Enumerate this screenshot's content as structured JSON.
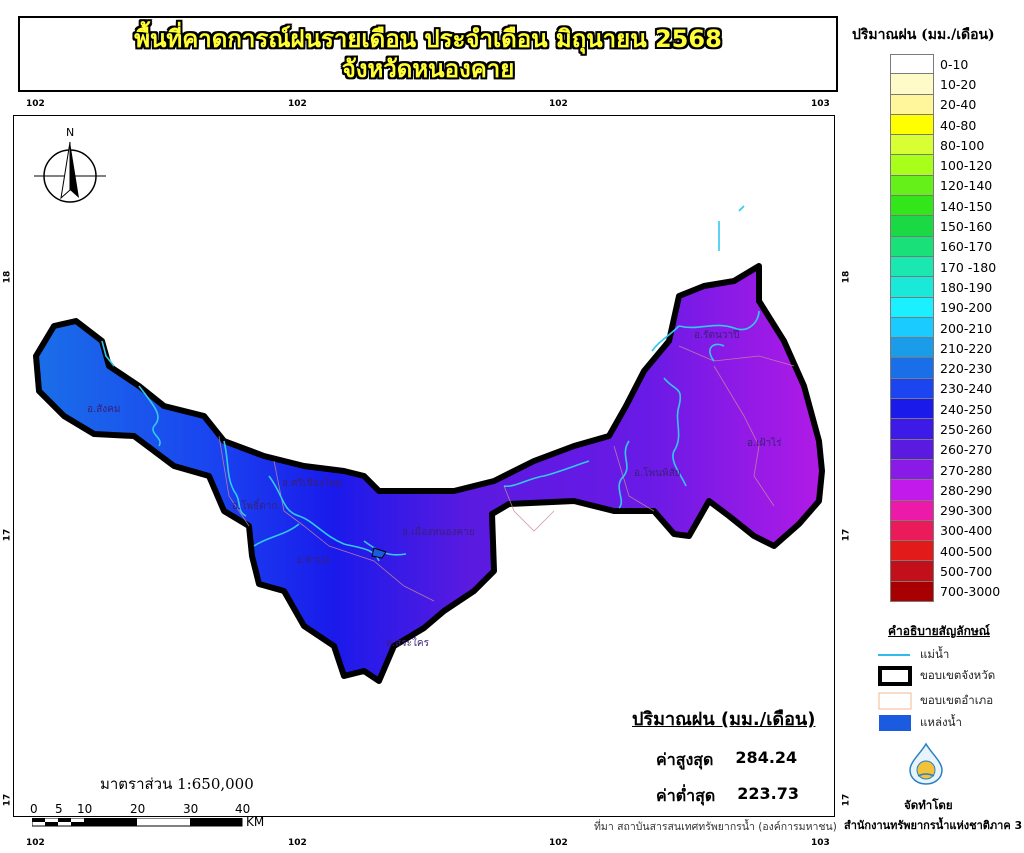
{
  "title": {
    "line1": "พื้นที่คาดการณ์ฝนรายเดือน ประจำเดือน มิถุนายน 2568",
    "line2": "จังหวัดหนองคาย"
  },
  "axis_ticks": {
    "top": [
      "102",
      "102",
      "102",
      "103"
    ],
    "bottom": [
      "102",
      "102",
      "102",
      "103"
    ],
    "left": [
      "18",
      "17",
      "17"
    ],
    "right": [
      "18",
      "17",
      "17"
    ]
  },
  "north_arrow": {
    "label": "N"
  },
  "districts": [
    "อ.สังคม",
    "อ.ศรีเชียงใหม่",
    "อ.โพธิ์ตาก",
    "อ.ท่าบ่อ",
    "อ.เมืองหนองคาย",
    "อ.สระใคร",
    "อ.โพนพิสัย",
    "อ.รัตนวาปี",
    "อ.เฝ้าไร่"
  ],
  "legend": {
    "title": "ปริมาณฝน (มม./เดือน)",
    "classes": [
      {
        "label": "0-10",
        "color": "#ffffff"
      },
      {
        "label": "10-20",
        "color": "#fffbc8"
      },
      {
        "label": "20-40",
        "color": "#fff59a"
      },
      {
        "label": "40-80",
        "color": "#ffff00"
      },
      {
        "label": "80-100",
        "color": "#d8ff33"
      },
      {
        "label": "100-120",
        "color": "#a8ff1a"
      },
      {
        "label": "120-140",
        "color": "#66f01a"
      },
      {
        "label": "140-150",
        "color": "#33e61a"
      },
      {
        "label": "150-160",
        "color": "#1ad945"
      },
      {
        "label": "160-170",
        "color": "#1ae07a"
      },
      {
        "label": "170 -180",
        "color": "#1ae8b0"
      },
      {
        "label": "180-190",
        "color": "#1ae8d8"
      },
      {
        "label": "190-200",
        "color": "#1af0ff"
      },
      {
        "label": "200-210",
        "color": "#1acbff"
      },
      {
        "label": "210-220",
        "color": "#1a9ce8"
      },
      {
        "label": "220-230",
        "color": "#1a6ee8"
      },
      {
        "label": "230-240",
        "color": "#1a45f0"
      },
      {
        "label": "240-250",
        "color": "#1a1aeb"
      },
      {
        "label": "250-260",
        "color": "#3d1ae8"
      },
      {
        "label": "260-270",
        "color": "#5a1ae0"
      },
      {
        "label": "270-280",
        "color": "#8a1ae6"
      },
      {
        "label": "280-290",
        "color": "#c21aeb"
      },
      {
        "label": "290-300",
        "color": "#eb1aa8"
      },
      {
        "label": "300-400",
        "color": "#eb1a5a"
      },
      {
        "label": "400-500",
        "color": "#e31a1a"
      },
      {
        "label": "500-700",
        "color": "#c20f1a"
      },
      {
        "label": "700-3000",
        "color": "#a80000"
      }
    ]
  },
  "symbol_key": {
    "title": "คำอธิบายสัญลักษณ์",
    "items": [
      {
        "label": "แม่น้ำ",
        "symbol": "river-line",
        "color": "#33bbee"
      },
      {
        "label": "ขอบเขตจังหวัด",
        "symbol": "province-boundary",
        "color": "#000000"
      },
      {
        "label": "ขอบเขตอำเภอ",
        "symbol": "district-boundary",
        "color": "#f0b890"
      },
      {
        "label": "แหล่งน้ำ",
        "symbol": "water-body",
        "color": "#1a5be0"
      }
    ]
  },
  "stats": {
    "title": "ปริมาณฝน (มม./เดือน)",
    "max_label": "ค่าสูงสุด",
    "max_value": "284.24",
    "min_label": "ค่าต่ำสุด",
    "min_value": "223.73"
  },
  "scale": {
    "text": "มาตราส่วน  1:650,000",
    "ticks": [
      "0",
      "5",
      "10",
      "20",
      "30",
      "40"
    ],
    "unit": "KM"
  },
  "source": "ที่มา  สถาบันสารสนเทศทรัพยากรน้ำ (องค์การมหาชน)",
  "credit": {
    "label": "จัดทำโดย",
    "org": "สำนักงานทรัพยากรน้ำแห่งชาติภาค 3"
  }
}
